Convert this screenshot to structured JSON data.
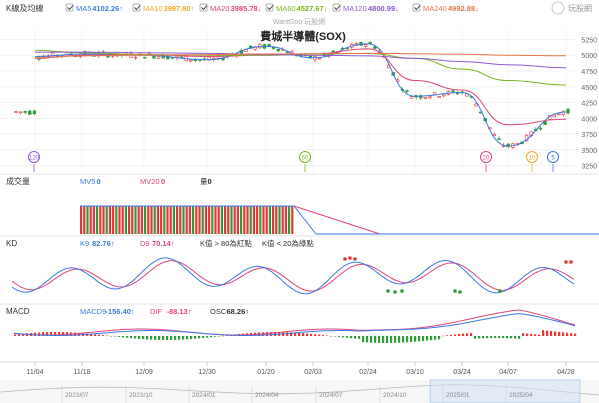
{
  "legend_top": {
    "title": "K線及均線",
    "items": [
      {
        "label": "MA5",
        "value": "4102.26↑",
        "color": "#3b78e7"
      },
      {
        "label": "MA10",
        "value": "3997.80↑",
        "color": "#f5a623"
      },
      {
        "label": "MA20",
        "value": "3985.78↓",
        "color": "#e0457b"
      },
      {
        "label": "MA60",
        "value": "4527.67↓",
        "color": "#7cb518"
      },
      {
        "label": "MA120",
        "value": "4800.99↓",
        "color": "#8e5bd6"
      },
      {
        "label": "MA240",
        "value": "4992.88↓",
        "color": "#e8734a"
      }
    ],
    "watermark": "WantGoo 玩股網",
    "logo": "玩股網"
  },
  "chart_title": "費城半導體(SOX)",
  "price_axis": [
    "5250",
    "5000",
    "4750",
    "4500",
    "4250",
    "4000",
    "3750",
    "3500",
    "3250"
  ],
  "event_markers": [
    {
      "label": "120",
      "color": "#8e5bd6"
    },
    {
      "label": "60",
      "color": "#7cb518"
    },
    {
      "label": "20",
      "color": "#e0457b"
    },
    {
      "label": "10",
      "color": "#f5a623"
    },
    {
      "label": "5",
      "color": "#3b78e7"
    }
  ],
  "volume": {
    "title": "成交量",
    "items": [
      {
        "label": "MV5",
        "value": "0",
        "color": "#3b78e7"
      },
      {
        "label": "MV20",
        "value": "0",
        "color": "#e0457b"
      },
      {
        "label": "量",
        "value": "0",
        "color": "#333333"
      }
    ]
  },
  "kd": {
    "title": "KD",
    "items": [
      {
        "label": "K9",
        "value": "82.76↑",
        "color": "#3b78e7"
      },
      {
        "label": "D9",
        "value": "70.14↑",
        "color": "#e0457b"
      },
      {
        "label": "K值 > 80為紅點",
        "value": "",
        "color": "#333333"
      },
      {
        "label": "K值 < 20為綠點",
        "value": "",
        "color": "#333333"
      }
    ]
  },
  "macd": {
    "title": "MACD",
    "items": [
      {
        "label": "MACD9",
        "value": "-156.40↑",
        "color": "#3b78e7"
      },
      {
        "label": "DIF",
        "value": "-88.13↑",
        "color": "#e0457b"
      },
      {
        "label": "OSC",
        "value": "68.26↑",
        "color": "#333333"
      }
    ]
  },
  "date_axis": [
    "11/04",
    "11/18",
    "12/09",
    "12/30",
    "01/20",
    "02/03",
    "02/24",
    "03/10",
    "03/24",
    "04/07",
    "04/28"
  ],
  "timeline_axis": [
    "2023/07",
    "2023/10",
    "2024/01",
    "2024/04",
    "2024/07",
    "2024/10",
    "2025/01",
    "2025/04"
  ],
  "chart_data": {
    "type": "line",
    "title": "費城半導體(SOX)",
    "x": [
      "11/04",
      "11/18",
      "12/09",
      "12/30",
      "01/20",
      "02/03",
      "02/24",
      "03/10",
      "03/24",
      "04/07",
      "04/28"
    ],
    "ylim": [
      3150,
      5400
    ],
    "series": [
      {
        "name": "MA5",
        "values": [
          4980,
          5020,
          5000,
          4930,
          5140,
          4960,
          5180,
          4350,
          4410,
          3560,
          4102
        ]
      },
      {
        "name": "MA20",
        "values": [
          4950,
          5000,
          5010,
          4980,
          5000,
          5020,
          5100,
          4600,
          4450,
          3900,
          3986
        ]
      },
      {
        "name": "MA60",
        "values": [
          5080,
          5040,
          5010,
          5000,
          5000,
          5020,
          5030,
          4950,
          4780,
          4600,
          4528
        ]
      },
      {
        "name": "MA120",
        "values": [
          5050,
          5050,
          5040,
          5030,
          5010,
          5000,
          4990,
          4950,
          4900,
          4850,
          4801
        ]
      },
      {
        "name": "MA240",
        "values": [
          4960,
          4990,
          5000,
          5010,
          5020,
          5025,
          5030,
          5025,
          5015,
          5000,
          4993
        ]
      }
    ],
    "grid": true
  }
}
